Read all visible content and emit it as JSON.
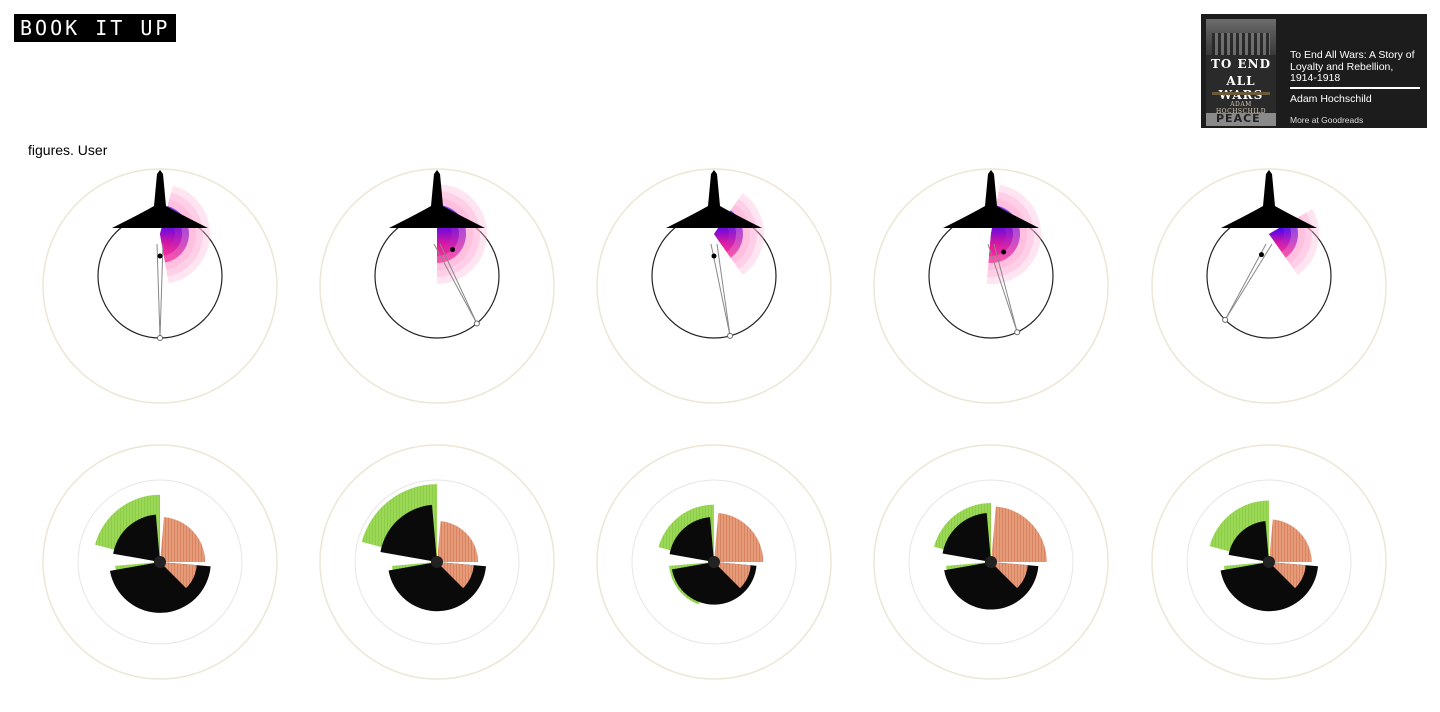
{
  "header": {
    "logo_text": "BOOK IT UP"
  },
  "book": {
    "cover_title_line1": "TO END",
    "cover_title_line2": "ALL WARS",
    "cover_author": "ADAM HOCHSCHILD",
    "cover_bottom_text": "PEACE",
    "title": "To End All Wars: A Story of Loyalty and Rebellion, 1914-1918",
    "author": "Adam Hochschild",
    "more_link": "More at Goodreads"
  },
  "caption": "figures. User",
  "colors": {
    "fan_top": "#2b00ff",
    "fan_bottom": "#ff1a8c",
    "fan_light": "#ffb3d9",
    "green": "#8fd44a",
    "salmon": "#e08a66",
    "ring": "#ece6d4"
  },
  "top_figures": [
    {
      "pointer_angle_deg": 180,
      "fan_start_deg": -75,
      "fan_end_deg": 80,
      "dot_angle_deg": 180
    },
    {
      "pointer_angle_deg": 140,
      "fan_start_deg": -90,
      "fan_end_deg": 90,
      "dot_angle_deg": 135
    },
    {
      "pointer_angle_deg": 165,
      "fan_start_deg": -55,
      "fan_end_deg": 55,
      "dot_angle_deg": 180
    },
    {
      "pointer_angle_deg": 155,
      "fan_start_deg": -80,
      "fan_end_deg": 95,
      "dot_angle_deg": 145
    },
    {
      "pointer_angle_deg": 225,
      "fan_start_deg": -30,
      "fan_end_deg": 55,
      "dot_angle_deg": 200
    }
  ],
  "bottom_figures": [
    {
      "green_outer": 0.82,
      "black_1": 0.58,
      "black_2": 0.62,
      "salmon": 0.55
    },
    {
      "green_outer": 0.95,
      "black_1": 0.7,
      "black_2": 0.6,
      "salmon": 0.5
    },
    {
      "green_outer": 0.7,
      "black_1": 0.55,
      "black_2": 0.52,
      "salmon": 0.6
    },
    {
      "green_outer": 0.72,
      "black_1": 0.6,
      "black_2": 0.58,
      "salmon": 0.68
    },
    {
      "green_outer": 0.75,
      "black_1": 0.5,
      "black_2": 0.6,
      "salmon": 0.52
    }
  ]
}
